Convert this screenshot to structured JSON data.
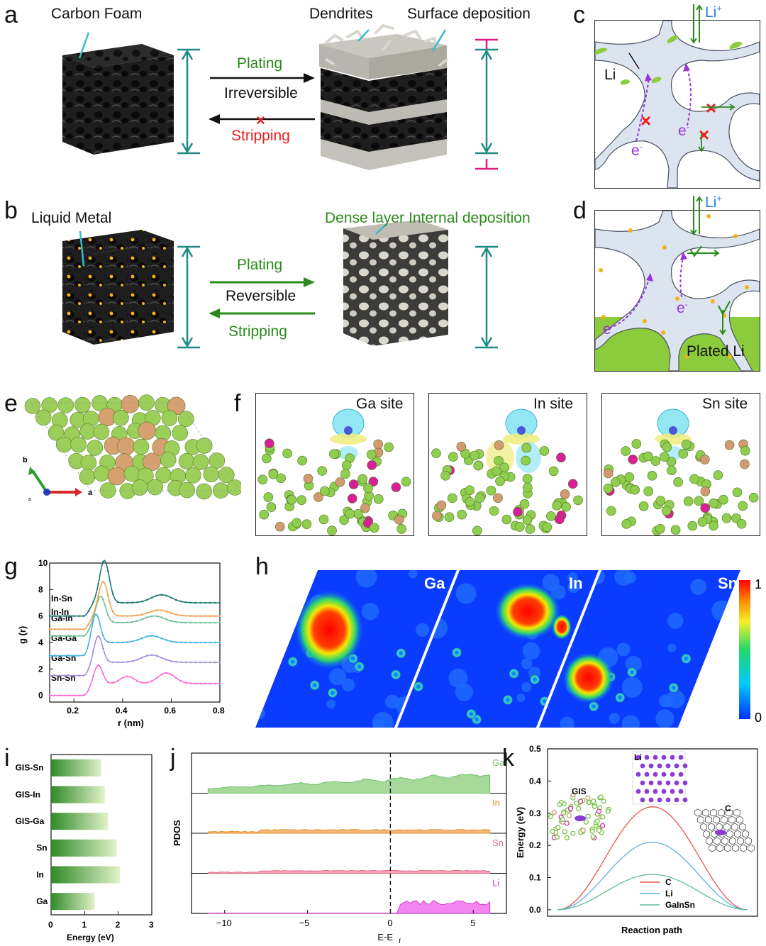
{
  "panel_labels": {
    "a": "a",
    "b": "b",
    "c": "c",
    "d": "d",
    "e": "e",
    "f": "f",
    "g": "g",
    "h": "h",
    "i": "i",
    "j": "j",
    "k": "k"
  },
  "panel_a": {
    "carbon_foam": "Carbon Foam",
    "dendrites": "Dendrites",
    "surface_deposition": "Surface deposition",
    "plating": "Plating",
    "irreversible": "Irreversible",
    "stripping": "Stripping"
  },
  "panel_b": {
    "liquid_metal": "Liquid Metal",
    "dense_layer": "Dense layer",
    "internal_deposition": "Internal deposition",
    "plating": "Plating",
    "reversible": "Reversible",
    "stripping": "Stripping"
  },
  "panel_c": {
    "li_ion": "Li",
    "li_ion_sup": "+",
    "li": "Li",
    "e1": "e",
    "e2": "e",
    "e_sup": "-"
  },
  "panel_d": {
    "li_ion": "Li",
    "li_ion_sup": "+",
    "e1": "e",
    "e2": "e",
    "e_sup": "-",
    "plated_li": "Plated Li"
  },
  "panel_e": {
    "axis_b": "b",
    "axis_a": "a",
    "axis_c": "a"
  },
  "panel_f": {
    "sites": [
      "Ga site",
      "In site",
      "Sn site"
    ]
  },
  "colors": {
    "green_li": "#8ccc3c",
    "foam_blue": "#dce4f0",
    "teal": "#1d8a85",
    "magenta": "#e0197f",
    "accent_green": "#2a8a1a",
    "red": "#ee1c1c",
    "purple": "#9b34d8"
  },
  "chart_data": [
    {
      "id": "g",
      "type": "line",
      "xlabel": "r (nm)",
      "ylabel": "g (r)",
      "xlim": [
        0.1,
        0.8
      ],
      "ylim": [
        -0.5,
        10
      ],
      "xticks": [
        0.2,
        0.4,
        0.6,
        0.8
      ],
      "yticks": [
        0,
        2,
        4,
        6,
        8,
        10
      ],
      "series": [
        {
          "name": "Sn-Sn",
          "color": "#ff6ad5",
          "offset": 0,
          "peaks": [
            [
              0.3,
              1.4,
              0.025
            ],
            [
              0.42,
              0.55,
              0.04
            ],
            [
              0.58,
              0.8,
              0.05
            ]
          ],
          "base": 0.9
        },
        {
          "name": "Ga-Sn",
          "color": "#a58fd9",
          "offset": 1.5,
          "peaks": [
            [
              0.3,
              2.0,
              0.025
            ],
            [
              0.52,
              0.55,
              0.06
            ]
          ],
          "base": 1.0
        },
        {
          "name": "Ga-Ga",
          "color": "#42b3e8",
          "offset": 3,
          "peaks": [
            [
              0.29,
              2.2,
              0.025
            ],
            [
              0.52,
              0.5,
              0.06
            ]
          ],
          "base": 1.0
        },
        {
          "name": "Ga-In",
          "color": "#6ec19a",
          "offset": 4.5,
          "peaks": [
            [
              0.31,
              2.0,
              0.027
            ],
            [
              0.53,
              0.5,
              0.06
            ]
          ],
          "base": 1.0
        },
        {
          "name": "In-In",
          "color": "#f5a04a",
          "offset": 5,
          "peaks": [
            [
              0.32,
              2.6,
              0.028
            ],
            [
              0.55,
              0.45,
              0.06
            ]
          ],
          "base": 1.0
        },
        {
          "name": "In-Sn",
          "color": "#1a7a6e",
          "offset": 6,
          "peaks": [
            [
              0.325,
              3.2,
              0.028
            ],
            [
              0.56,
              0.6,
              0.06
            ]
          ],
          "base": 1.0
        }
      ]
    },
    {
      "id": "h",
      "type": "heatmap",
      "panels": [
        "Ga",
        "In",
        "Sn"
      ],
      "colorbar": {
        "min": "0",
        "max": "1"
      }
    },
    {
      "id": "i",
      "type": "bar",
      "orientation": "horizontal",
      "categories": [
        "GIS-Sn",
        "GIS-In",
        "GIS-Ga",
        "Sn",
        "In",
        "Ga"
      ],
      "values": [
        1.5,
        1.6,
        1.7,
        1.95,
        2.05,
        1.3
      ],
      "xlabel": "Energy (eV)",
      "xlim": [
        0,
        3
      ],
      "xticks": [
        0,
        1,
        2,
        3
      ]
    },
    {
      "id": "j",
      "type": "area",
      "xlabel": "E-E",
      "xlabel_sub": "f",
      "ylabel": "PDOS",
      "xlim": [
        -12,
        7
      ],
      "xticks": [
        -10,
        -5,
        0,
        5
      ],
      "series": [
        {
          "name": "Ga",
          "color": "#6cc06c",
          "fill": "#a6d99a"
        },
        {
          "name": "In",
          "color": "#e8902a",
          "fill": "#f2b878"
        },
        {
          "name": "Sn",
          "color": "#e06a8a",
          "fill": "#f4a6b8"
        },
        {
          "name": "Li",
          "color": "#d23fd2",
          "fill": "#f285f0"
        }
      ]
    },
    {
      "id": "k",
      "type": "line",
      "xlabel": "Reaction path",
      "ylabel": "Energy (eV)",
      "ylim": [
        -0.02,
        0.5
      ],
      "yticks": [
        0.0,
        0.1,
        0.2,
        0.3,
        0.4,
        0.5
      ],
      "series": [
        {
          "name": "C",
          "color": "#e8554e",
          "peak": 0.32
        },
        {
          "name": "Li",
          "color": "#59b4e4",
          "peak": 0.21
        },
        {
          "name": "GaInSn",
          "color": "#5ebf9c",
          "peak": 0.11
        }
      ],
      "insets": {
        "li": "Li",
        "gis": "GIS",
        "c": "C"
      }
    }
  ]
}
